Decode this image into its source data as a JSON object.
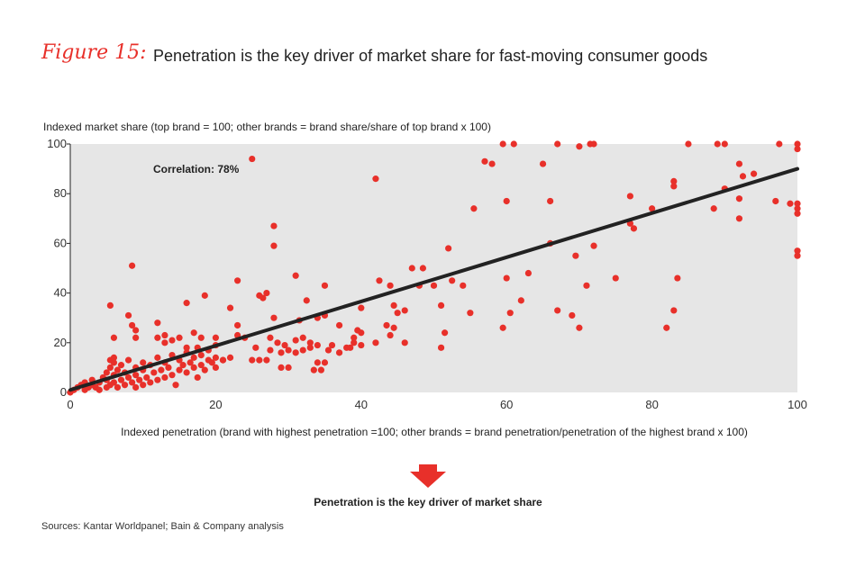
{
  "figure": {
    "label": "Figure 15:",
    "title": "Penetration is the key driver of market share for fast-moving consumer goods"
  },
  "takeaway": "Penetration is the key driver of market share",
  "sources": "Sources: Kantar Worldpanel; Bain & Company analysis",
  "colors": {
    "accent": "#e8302a",
    "plot_bg": "#e6e6e6",
    "trend": "#222222"
  },
  "chart_data": {
    "type": "scatter",
    "title": "",
    "xlabel": "Indexed penetration (brand with highest penetration =100; other brands = brand penetration/penetration of the highest brand x 100)",
    "ylabel": "Indexed market share (top brand = 100; other brands = brand share/share of top brand x 100)",
    "annotation": "Correlation: 78%",
    "xlim": [
      0,
      100
    ],
    "ylim": [
      0,
      100
    ],
    "xticks": [
      0,
      20,
      40,
      60,
      80,
      100
    ],
    "yticks": [
      0,
      20,
      40,
      60,
      80,
      100
    ],
    "grid": false,
    "trendline": {
      "x": [
        0,
        100
      ],
      "y": [
        1,
        90
      ]
    },
    "points": [
      [
        0,
        0
      ],
      [
        0.5,
        1
      ],
      [
        1,
        2
      ],
      [
        1.5,
        3
      ],
      [
        2,
        1
      ],
      [
        2,
        4
      ],
      [
        2.5,
        2
      ],
      [
        3,
        3
      ],
      [
        3,
        5
      ],
      [
        3.5,
        2
      ],
      [
        4,
        4
      ],
      [
        4,
        1
      ],
      [
        4.5,
        6
      ],
      [
        5,
        2
      ],
      [
        5,
        5
      ],
      [
        5,
        8
      ],
      [
        5.5,
        3
      ],
      [
        5.5,
        10
      ],
      [
        5.5,
        13
      ],
      [
        6,
        4
      ],
      [
        6,
        7
      ],
      [
        6,
        12
      ],
      [
        6,
        14
      ],
      [
        6.5,
        2
      ],
      [
        6.5,
        9
      ],
      [
        7,
        5
      ],
      [
        7,
        11
      ],
      [
        7.5,
        3
      ],
      [
        7.5,
        8
      ],
      [
        8,
        6
      ],
      [
        8,
        13
      ],
      [
        8.5,
        4
      ],
      [
        9,
        2
      ],
      [
        9,
        7
      ],
      [
        9,
        10
      ],
      [
        9.5,
        5
      ],
      [
        10,
        3
      ],
      [
        10,
        9
      ],
      [
        10,
        12
      ],
      [
        10.5,
        6
      ],
      [
        11,
        4
      ],
      [
        11,
        11
      ],
      [
        11.5,
        8
      ],
      [
        12,
        5
      ],
      [
        12,
        14
      ],
      [
        12.5,
        9
      ],
      [
        13,
        6
      ],
      [
        13,
        12
      ],
      [
        13.5,
        10
      ],
      [
        14,
        7
      ],
      [
        14,
        15
      ],
      [
        14.5,
        3
      ],
      [
        15,
        9
      ],
      [
        15,
        13
      ],
      [
        15.5,
        11
      ],
      [
        16,
        8
      ],
      [
        16,
        16
      ],
      [
        16.5,
        12
      ],
      [
        17,
        10
      ],
      [
        17,
        14
      ],
      [
        17.5,
        6
      ],
      [
        18,
        11
      ],
      [
        18,
        15
      ],
      [
        18.5,
        9
      ],
      [
        19,
        13
      ],
      [
        19.5,
        12
      ],
      [
        20,
        10
      ],
      [
        20,
        14
      ],
      [
        21,
        13
      ],
      [
        5.5,
        35
      ],
      [
        6,
        22
      ],
      [
        8,
        31
      ],
      [
        8.5,
        51
      ],
      [
        8.5,
        27
      ],
      [
        9,
        25
      ],
      [
        9,
        22
      ],
      [
        12,
        28
      ],
      [
        12,
        22
      ],
      [
        13,
        20
      ],
      [
        13,
        23
      ],
      [
        14,
        21
      ],
      [
        15,
        22
      ],
      [
        16,
        18
      ],
      [
        16,
        36
      ],
      [
        17,
        24
      ],
      [
        17.5,
        18
      ],
      [
        18,
        22
      ],
      [
        18.5,
        39
      ],
      [
        19,
        17
      ],
      [
        20,
        19
      ],
      [
        20,
        22
      ],
      [
        21,
        13
      ],
      [
        22,
        34
      ],
      [
        22,
        14
      ],
      [
        23,
        27
      ],
      [
        23,
        45
      ],
      [
        23,
        23
      ],
      [
        24,
        22
      ],
      [
        25,
        13
      ],
      [
        25,
        94
      ],
      [
        25.5,
        18
      ],
      [
        26,
        13
      ],
      [
        26,
        39
      ],
      [
        26.5,
        38
      ],
      [
        27,
        13
      ],
      [
        27,
        40
      ],
      [
        27.5,
        22
      ],
      [
        27.5,
        17
      ],
      [
        28,
        30
      ],
      [
        28,
        67
      ],
      [
        28,
        59
      ],
      [
        28.5,
        20
      ],
      [
        29,
        10
      ],
      [
        29,
        16
      ],
      [
        29.5,
        19
      ],
      [
        30,
        10
      ],
      [
        30,
        17
      ],
      [
        31,
        21
      ],
      [
        31,
        47
      ],
      [
        31,
        16
      ],
      [
        31.5,
        29
      ],
      [
        32,
        22
      ],
      [
        32,
        17
      ],
      [
        32.5,
        37
      ],
      [
        33,
        20
      ],
      [
        33,
        18
      ],
      [
        33.5,
        9
      ],
      [
        34,
        12
      ],
      [
        34,
        19
      ],
      [
        34,
        30
      ],
      [
        34.5,
        9
      ],
      [
        35,
        12
      ],
      [
        35,
        43
      ],
      [
        35,
        31
      ],
      [
        35.5,
        17
      ],
      [
        36,
        19
      ],
      [
        37,
        16
      ],
      [
        37,
        27
      ],
      [
        38,
        18
      ],
      [
        38.5,
        18
      ],
      [
        39,
        20
      ],
      [
        39,
        22
      ],
      [
        39.5,
        25
      ],
      [
        40,
        24
      ],
      [
        40,
        19
      ],
      [
        40,
        34
      ],
      [
        42,
        20
      ],
      [
        42,
        86
      ],
      [
        42.5,
        45
      ],
      [
        43.5,
        27
      ],
      [
        44,
        23
      ],
      [
        44,
        43
      ],
      [
        44.5,
        26
      ],
      [
        44.5,
        35
      ],
      [
        45,
        32
      ],
      [
        46,
        20
      ],
      [
        46,
        33
      ],
      [
        47,
        50
      ],
      [
        48,
        43
      ],
      [
        48.5,
        50
      ],
      [
        50,
        43
      ],
      [
        51,
        18
      ],
      [
        51,
        35
      ],
      [
        51.5,
        24
      ],
      [
        52,
        58
      ],
      [
        52.5,
        45
      ],
      [
        54,
        43
      ],
      [
        55,
        32
      ],
      [
        55.5,
        74
      ],
      [
        57,
        93
      ],
      [
        58,
        92
      ],
      [
        59.5,
        100
      ],
      [
        59.5,
        26
      ],
      [
        60,
        77
      ],
      [
        60,
        46
      ],
      [
        60.5,
        32
      ],
      [
        61,
        100
      ],
      [
        62,
        37
      ],
      [
        63,
        48
      ],
      [
        65,
        92
      ],
      [
        66,
        77
      ],
      [
        66,
        60
      ],
      [
        67,
        100
      ],
      [
        67,
        33
      ],
      [
        69,
        31
      ],
      [
        69.5,
        55
      ],
      [
        70,
        99
      ],
      [
        70,
        26
      ],
      [
        71,
        43
      ],
      [
        71.5,
        100
      ],
      [
        72,
        100
      ],
      [
        72,
        59
      ],
      [
        75,
        46
      ],
      [
        77,
        79
      ],
      [
        77,
        68
      ],
      [
        77.5,
        66
      ],
      [
        80,
        74
      ],
      [
        82,
        26
      ],
      [
        83,
        85
      ],
      [
        83,
        83
      ],
      [
        83,
        33
      ],
      [
        83.5,
        46
      ],
      [
        85,
        100
      ],
      [
        88.5,
        74
      ],
      [
        89,
        100
      ],
      [
        90,
        100
      ],
      [
        90,
        82
      ],
      [
        92,
        92
      ],
      [
        92,
        70
      ],
      [
        92,
        78
      ],
      [
        92.5,
        87
      ],
      [
        94,
        88
      ],
      [
        97,
        77
      ],
      [
        97.5,
        100
      ],
      [
        99,
        76
      ],
      [
        100,
        100
      ],
      [
        100,
        98
      ],
      [
        100,
        76
      ],
      [
        100,
        74
      ],
      [
        100,
        72
      ],
      [
        100,
        57
      ],
      [
        100,
        55
      ]
    ]
  }
}
